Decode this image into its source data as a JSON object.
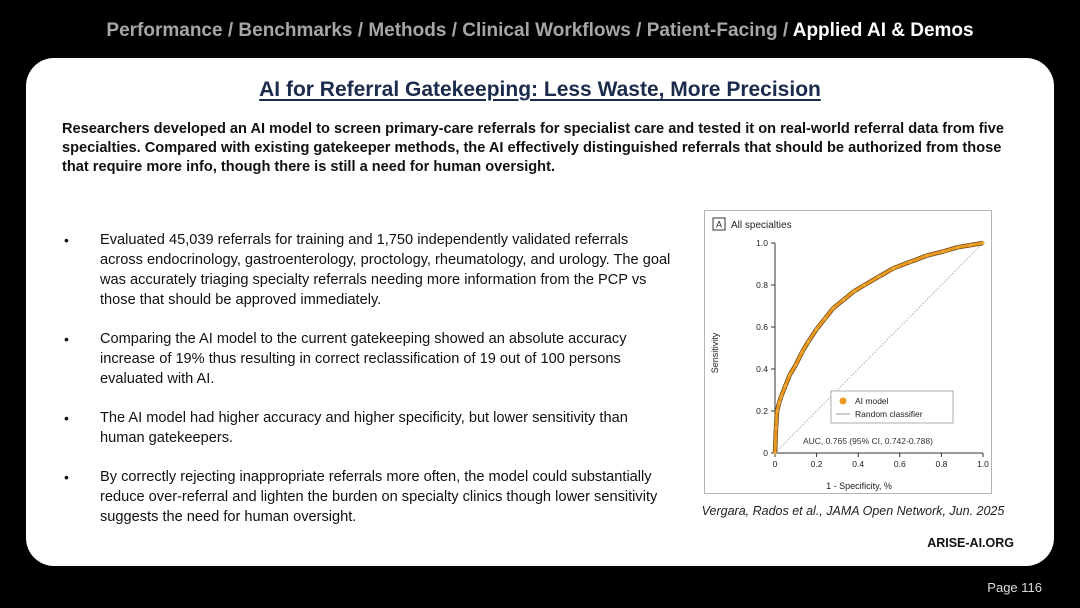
{
  "breadcrumb": {
    "items": [
      "Performance",
      "Benchmarks",
      "Methods",
      "Clinical Workflows",
      "Patient-Facing"
    ],
    "separator": " / ",
    "current": "Applied AI & Demos"
  },
  "slide": {
    "title": "AI for Referral Gatekeeping: Less Waste, More Precision",
    "summary": "Researchers developed an AI model to screen primary-care referrals for specialist care and tested it on real-world referral data from five specialties. Compared with existing gatekeeper methods, the AI effectively distinguished referrals that should be authorized from those that require more info, though there is still a need for human oversight.",
    "bullet_symbol": "•",
    "bullets": [
      "Evaluated 45,039 referrals for training and 1,750 independently validated referrals across endocrinology, gastroenterology, proctology, rheumatology, and urology. The goal was accurately triaging specialty referrals needing more information from the PCP vs those that should be approved immediately.",
      "Comparing the AI model to the current gatekeeping showed an absolute accuracy increase of 19% thus resulting in correct reclassification of 19 out of 100 persons evaluated with AI.",
      "The AI model had higher accuracy and higher specificity, but lower sensitivity than human gatekeepers.",
      "By correctly rejecting inappropriate referrals more often, the model could substantially reduce over-referral and lighten the burden on specialty clinics though lower sensitivity suggests the need for human oversight."
    ],
    "citation": "Vergara, Rados et al., JAMA Open Network, Jun. 2025",
    "brand": "ARISE-AI.ORG",
    "page_number": "Page 116"
  },
  "chart_data": {
    "type": "line",
    "panel_letter": "A",
    "title": "All specialties",
    "xlabel": "1 - Specificity, %",
    "ylabel": "Sensitivity",
    "xlim": [
      0,
      1
    ],
    "ylim": [
      0,
      1
    ],
    "ticks": [
      "0",
      "0.2",
      "0.4",
      "0.6",
      "0.8",
      "1.0"
    ],
    "grid": false,
    "legend_position": "bottom-right",
    "annotation": "AUC, 0.765 (95% CI, 0.742-0.788)",
    "series": [
      {
        "name": "AI model",
        "color": "#e8981e",
        "x": [
          0,
          0.005,
          0.01,
          0.02,
          0.03,
          0.05,
          0.07,
          0.1,
          0.13,
          0.16,
          0.2,
          0.24,
          0.28,
          0.33,
          0.38,
          0.43,
          0.5,
          0.57,
          0.65,
          0.73,
          0.81,
          0.88,
          0.94,
          1.0
        ],
        "y": [
          0,
          0.12,
          0.2,
          0.24,
          0.27,
          0.32,
          0.37,
          0.42,
          0.48,
          0.53,
          0.59,
          0.64,
          0.69,
          0.73,
          0.77,
          0.8,
          0.84,
          0.88,
          0.91,
          0.94,
          0.96,
          0.98,
          0.99,
          1.0
        ]
      },
      {
        "name": "Random classifier",
        "color": "#999999",
        "x": [
          0,
          1
        ],
        "y": [
          0,
          1
        ]
      }
    ]
  }
}
